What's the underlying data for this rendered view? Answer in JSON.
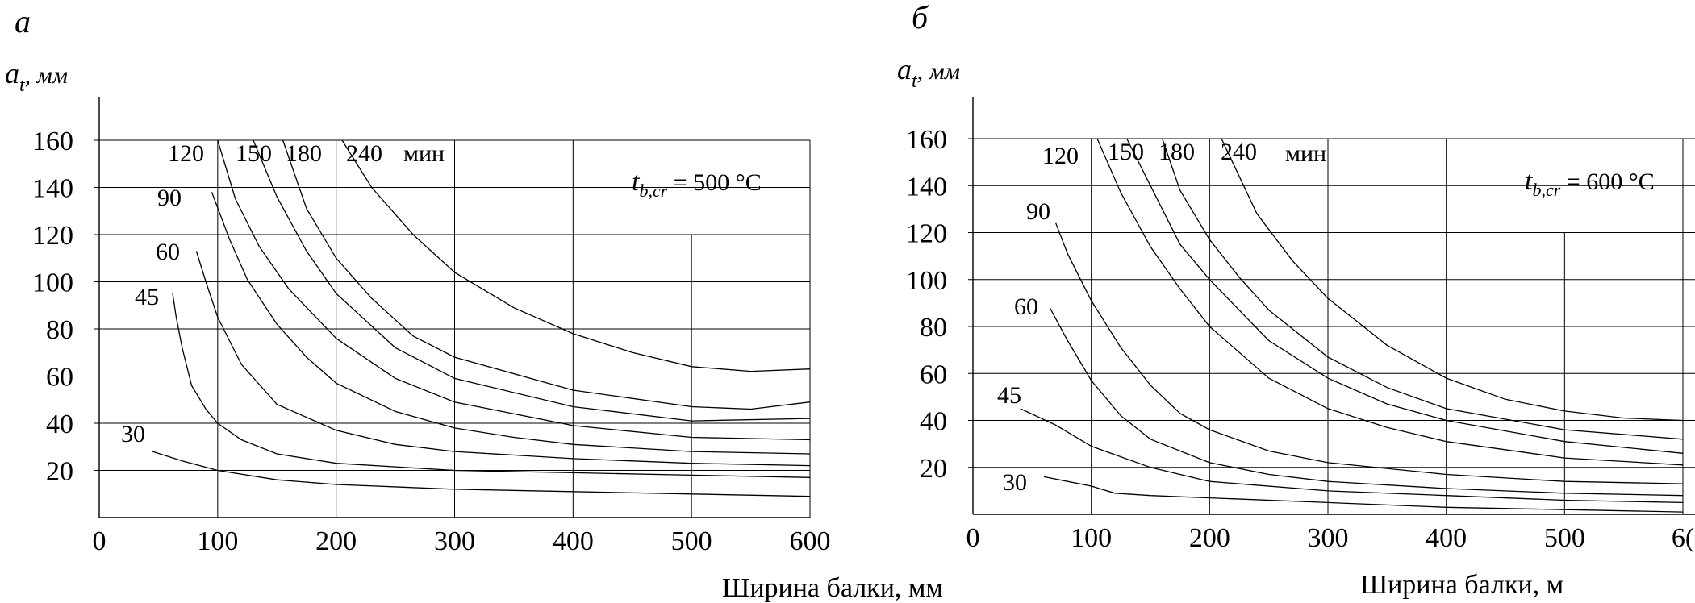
{
  "chart_data": [
    {
      "type": "line",
      "panel_label": "а",
      "ylabel": "a",
      "ylabel_sub": "t",
      "ylabel_unit": ", мм",
      "xlabel": "Ширина балки, мм",
      "x_ticks": [
        "0",
        "100",
        "200",
        "300",
        "400",
        "500",
        "600"
      ],
      "y_ticks": [
        "20",
        "40",
        "60",
        "80",
        "100",
        "120",
        "140",
        "160"
      ],
      "xlim": [
        0,
        600
      ],
      "ylim": [
        0,
        160
      ],
      "grid": true,
      "annotation": {
        "t": "t",
        "sub": "b,cr",
        "rest": " = 500 °C"
      },
      "unit_label": "мин",
      "series": [
        {
          "name": "30",
          "x": [
            45,
            70,
            100,
            150,
            200,
            300,
            400,
            500,
            600
          ],
          "y": [
            28,
            24,
            20,
            16,
            14,
            12,
            11,
            10,
            9
          ]
        },
        {
          "name": "45",
          "x": [
            62,
            65,
            70,
            78,
            90,
            100,
            120,
            150,
            200,
            300,
            400,
            500,
            600
          ],
          "y": [
            95,
            85,
            72,
            56,
            46,
            40,
            33,
            27,
            23,
            20,
            19,
            18,
            17
          ]
        },
        {
          "name": "60",
          "x": [
            82,
            90,
            100,
            120,
            150,
            200,
            250,
            300,
            400,
            500,
            600
          ],
          "y": [
            113,
            100,
            85,
            65,
            48,
            37,
            31,
            28,
            25,
            23,
            22
          ]
        },
        {
          "name": "90",
          "x": [
            95,
            110,
            125,
            150,
            175,
            200,
            250,
            300,
            350,
            400,
            500,
            600
          ],
          "y": [
            138,
            118,
            101,
            82,
            68,
            57,
            45,
            38,
            34,
            31,
            28,
            27
          ]
        },
        {
          "name": "120",
          "x": [
            100,
            115,
            135,
            160,
            200,
            250,
            300,
            400,
            500,
            600
          ],
          "y": [
            160,
            135,
            115,
            97,
            76,
            59,
            49,
            39,
            34,
            33
          ]
        },
        {
          "name": "150",
          "x": [
            130,
            150,
            175,
            200,
            250,
            300,
            400,
            500,
            600
          ],
          "y": [
            160,
            136,
            113,
            95,
            72,
            59,
            47,
            41,
            42
          ]
        },
        {
          "name": "180",
          "x": [
            155,
            175,
            200,
            230,
            265,
            300,
            400,
            500,
            550,
            600
          ],
          "y": [
            160,
            131,
            110,
            93,
            77,
            68,
            54,
            47,
            46,
            49
          ]
        },
        {
          "name": "240",
          "x": [
            205,
            230,
            265,
            300,
            350,
            400,
            450,
            500,
            550,
            600
          ],
          "y": [
            160,
            140,
            120,
            104,
            89,
            78,
            70,
            64,
            62,
            63
          ]
        }
      ]
    },
    {
      "type": "line",
      "panel_label": "б",
      "ylabel": "a",
      "ylabel_sub": "t",
      "ylabel_unit": ", мм",
      "xlabel": "Ширина балки, м",
      "x_ticks": [
        "0",
        "100",
        "200",
        "300",
        "400",
        "500",
        "6("
      ],
      "y_ticks": [
        "20",
        "40",
        "60",
        "80",
        "100",
        "120",
        "140",
        "160"
      ],
      "xlim": [
        0,
        600
      ],
      "ylim": [
        0,
        160
      ],
      "grid": true,
      "annotation": {
        "t": "t",
        "sub": "b,cr",
        "rest": " = 600 °C"
      },
      "unit_label": "мин",
      "series": [
        {
          "name": "30",
          "x": [
            60,
            80,
            100,
            120,
            150,
            200,
            300,
            400,
            500,
            600
          ],
          "y": [
            16,
            14,
            12,
            9,
            8,
            7,
            5,
            3,
            2,
            1
          ]
        },
        {
          "name": "45",
          "x": [
            40,
            70,
            100,
            150,
            200,
            300,
            400,
            500,
            600
          ],
          "y": [
            45,
            38,
            29,
            20,
            14,
            10,
            8,
            6,
            5
          ]
        },
        {
          "name": "60",
          "x": [
            65,
            80,
            100,
            125,
            150,
            200,
            250,
            300,
            400,
            500,
            600
          ],
          "y": [
            88,
            74,
            57,
            42,
            32,
            22,
            17,
            14,
            11,
            9,
            8
          ]
        },
        {
          "name": "90",
          "x": [
            70,
            80,
            100,
            125,
            150,
            175,
            200,
            250,
            300,
            400,
            500,
            600
          ],
          "y": [
            124,
            111,
            91,
            71,
            55,
            43,
            36,
            27,
            22,
            17,
            14,
            13
          ]
        },
        {
          "name": "120",
          "x": [
            105,
            125,
            150,
            175,
            200,
            250,
            300,
            350,
            400,
            500,
            600
          ],
          "y": [
            160,
            137,
            114,
            96,
            80,
            58,
            45,
            37,
            31,
            24,
            21
          ]
        },
        {
          "name": "150",
          "x": [
            130,
            150,
            175,
            200,
            250,
            300,
            350,
            400,
            500,
            600
          ],
          "y": [
            160,
            140,
            115,
            100,
            74,
            58,
            47,
            40,
            31,
            26
          ]
        },
        {
          "name": "180",
          "x": [
            160,
            175,
            200,
            225,
            250,
            300,
            350,
            400,
            500,
            600
          ],
          "y": [
            160,
            138,
            117,
            101,
            87,
            67,
            54,
            45,
            36,
            32
          ]
        },
        {
          "name": "240",
          "x": [
            210,
            240,
            270,
            300,
            350,
            400,
            450,
            500,
            550,
            600
          ],
          "y": [
            160,
            128,
            108,
            92,
            72,
            58,
            49,
            44,
            41,
            40
          ]
        }
      ]
    }
  ]
}
